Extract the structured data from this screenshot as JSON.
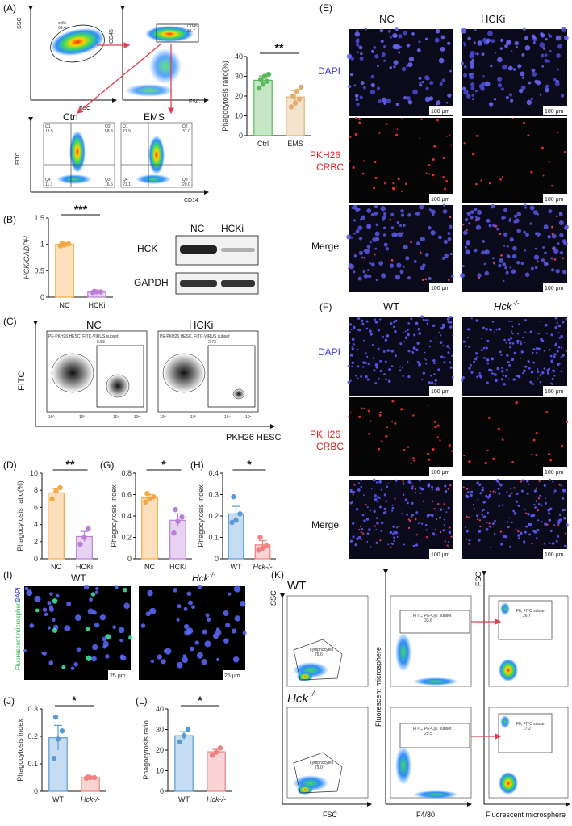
{
  "panels": {
    "A": {
      "label": "(A)",
      "gate_cells": "cells",
      "gate_cells_value": "69.4",
      "gate_cd45": "CD45",
      "gate_cd45_value": "33.7",
      "axis_ssc": "SSC",
      "axis_fsc": "FSC",
      "axis_cd45": "CD45",
      "axis_fsc2": "FSC",
      "ctrl_title": "Ctrl",
      "ems_title": "EMS",
      "axis_fitc": "FITC",
      "axis_cd14": "CD14",
      "ctrl_quads": [
        "Q1",
        "13.5",
        "Q2",
        "58.8",
        "Q4",
        "11.1",
        "Q3",
        "16.6"
      ],
      "ems_quads": [
        "Q1",
        "21.9",
        "Q2",
        "37.0",
        "Q4",
        "21.1",
        "Q3",
        "20.0"
      ]
    },
    "B": {
      "label": "(B)",
      "significance": "***",
      "wb_nc": "NC",
      "wb_hcki": "HCKi",
      "wb_hck": "HCK",
      "wb_gapdh": "GAPDH"
    },
    "C": {
      "label": "(C)",
      "nc_title": "NC",
      "hcki_title": "HCKi",
      "nc_subset": "PE-PKH26 HESC, FITC-VIRUS subset",
      "nc_value": "8.53",
      "hcki_subset": "PE-PKH26 HESC, FITC-VIRUS subset",
      "hcki_value": "2.73",
      "axis_y": "FITC",
      "axis_x": "PKH26 HESC",
      "ticks": [
        "10⁰",
        "10¹",
        "10²",
        "10³",
        "10⁴",
        "10⁵"
      ]
    },
    "D": {
      "label": "(D)",
      "significance": "**"
    },
    "E": {
      "label": "(E)",
      "col_nc": "NC",
      "col_hcki": "HCKi",
      "row_dapi": "DAPI",
      "row_pkh_1": "PKH26",
      "row_pkh_2": "CRBC",
      "row_merge": "Merge",
      "scalebar": "100 μm"
    },
    "F": {
      "label": "(F)",
      "col_wt": "WT",
      "col_hck": "Hck",
      "col_hck_sup": "-/-",
      "row_dapi": "DAPI",
      "row_pkh_1": "PKH26",
      "row_pkh_2": "CRBC",
      "row_merge": "Merge",
      "scalebar": "100 μm"
    },
    "G": {
      "label": "(G)",
      "significance": "*"
    },
    "H": {
      "label": "(H)",
      "significance": "*"
    },
    "I": {
      "label": "(I)",
      "col_wt": "WT",
      "col_hck": "Hck",
      "col_hck_sup": "-/-",
      "side_label_green": "Fluorescent microsphere",
      "side_label_blue": "DAPI",
      "scalebar": "25 μm"
    },
    "J": {
      "label": "(J)",
      "significance": "*"
    },
    "K": {
      "label": "(K)",
      "wt": "WT",
      "hck": "Hck",
      "hck_sup": "-/-",
      "axis_ssc": "SSC",
      "axis_fsc": "FSC",
      "axis_fm": "Fluorescent microsphere",
      "axis_f480": "F4/80",
      "axis_fsc_r": "FSC",
      "axis_fm_r": "Fluorescent microsphere",
      "lymph_gate": "Lymphocytes",
      "lymph_wt": "76.6",
      "lymph_hck": "79.0",
      "mid_gate": "FITC, PE-CyT subset",
      "mid_wt": "33.6",
      "mid_hck": "29.5",
      "right_gate": "F8, FITC subset",
      "right_wt": "26.7",
      "right_hck": "17.2"
    },
    "L": {
      "label": "(L)",
      "significance": "*"
    }
  },
  "chart_data": [
    {
      "id": "A",
      "type": "bar",
      "categories": [
        "Ctrl",
        "EMS"
      ],
      "values": [
        28,
        19.5
      ],
      "errors": [
        2.2,
        3.2
      ],
      "points": [
        [
          24,
          26,
          27.5,
          28.5,
          30,
          31
        ],
        [
          14.5,
          16.5,
          18.5,
          20,
          22.5,
          24.5
        ]
      ],
      "colors": [
        "#5cb85c",
        "#e0b070"
      ],
      "ylabel": "Phagocytosis ratio(%)",
      "yticks": [
        0,
        10,
        20,
        30,
        40
      ],
      "ylim": [
        0,
        40
      ],
      "significance": "**"
    },
    {
      "id": "B",
      "type": "bar",
      "categories": [
        "NC",
        "HCKi"
      ],
      "values": [
        1.0,
        0.1
      ],
      "errors": [
        0.03,
        0.015
      ],
      "points": [
        [
          0.97,
          0.99,
          1.01,
          1.02
        ],
        [
          0.09,
          0.1,
          0.1,
          0.11
        ]
      ],
      "colors": [
        "#f5a742",
        "#b97fd6"
      ],
      "ylabel": "HCK/GADPH",
      "yticks": [
        0.0,
        0.5,
        1.0,
        1.5
      ],
      "ylim": [
        0,
        1.5
      ],
      "significance": "***"
    },
    {
      "id": "D",
      "type": "bar",
      "categories": [
        "NC",
        "HCKi"
      ],
      "values": [
        7.7,
        2.6
      ],
      "errors": [
        0.5,
        0.6
      ],
      "points": [
        [
          7.0,
          7.9,
          8.3
        ],
        [
          1.7,
          2.5,
          3.5
        ]
      ],
      "colors": [
        "#f5a742",
        "#b97fd6"
      ],
      "ylabel": "Phagocytosis ratio(%)",
      "yticks": [
        0,
        2,
        4,
        6,
        8,
        10
      ],
      "ylim": [
        0,
        10
      ],
      "significance": "**"
    },
    {
      "id": "G",
      "type": "bar",
      "categories": [
        "NC",
        "HCKi"
      ],
      "values": [
        0.57,
        0.36
      ],
      "errors": [
        0.03,
        0.06
      ],
      "points": [
        [
          0.53,
          0.56,
          0.58,
          0.61
        ],
        [
          0.24,
          0.35,
          0.39,
          0.46
        ]
      ],
      "colors": [
        "#f5a742",
        "#b97fd6"
      ],
      "ylabel": "Phagocytosis index",
      "yticks": [
        0.0,
        0.2,
        0.4,
        0.6,
        0.8
      ],
      "ylim": [
        0,
        0.8
      ],
      "significance": "*"
    },
    {
      "id": "H",
      "type": "bar",
      "categories": [
        "WT",
        "Hck-/-"
      ],
      "values": [
        0.21,
        0.065
      ],
      "errors": [
        0.035,
        0.02
      ],
      "points": [
        [
          0.17,
          0.18,
          0.21,
          0.29
        ],
        [
          0.04,
          0.05,
          0.06,
          0.1
        ]
      ],
      "colors": [
        "#5b9bd5",
        "#f08080"
      ],
      "ylabel": "Phagocytosis index",
      "yticks": [
        0.0,
        0.1,
        0.2,
        0.3,
        0.4
      ],
      "ylim": [
        0,
        0.4
      ],
      "significance": "*"
    },
    {
      "id": "J",
      "type": "bar",
      "categories": [
        "WT",
        "Hck-/-"
      ],
      "values": [
        0.195,
        0.05
      ],
      "errors": [
        0.045,
        0.003
      ],
      "points": [
        [
          0.12,
          0.19,
          0.22,
          0.27
        ],
        [
          0.048,
          0.05,
          0.05,
          0.052
        ]
      ],
      "colors": [
        "#5b9bd5",
        "#f08080"
      ],
      "ylabel": "Phagocytosis index",
      "yticks": [
        0.0,
        0.1,
        0.2,
        0.3
      ],
      "ylim": [
        0,
        0.3
      ],
      "significance": "*"
    },
    {
      "id": "L",
      "type": "bar",
      "categories": [
        "WT",
        "Hck-/-"
      ],
      "values": [
        27,
        19.2
      ],
      "errors": [
        2.0,
        1.2
      ],
      "points": [
        [
          24,
          27,
          30
        ],
        [
          17.5,
          19,
          21
        ]
      ],
      "colors": [
        "#5b9bd5",
        "#f08080"
      ],
      "ylabel": "Phagocytosis ratio",
      "yticks": [
        0,
        10,
        20,
        30,
        40
      ],
      "ylim": [
        0,
        40
      ],
      "significance": "*"
    }
  ]
}
